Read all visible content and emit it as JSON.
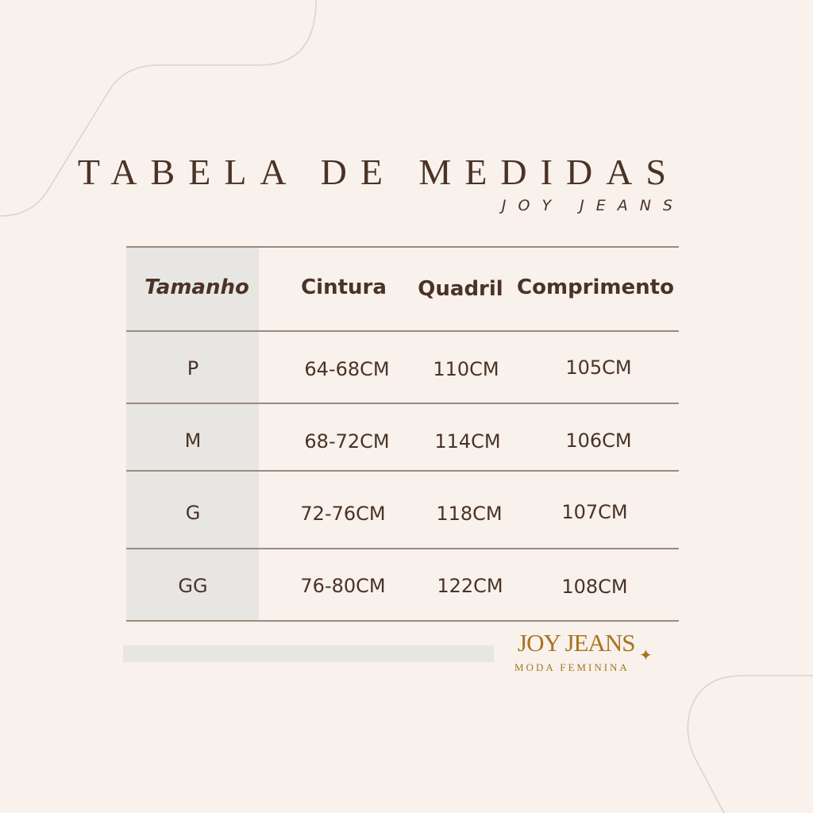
{
  "header": {
    "title": "TABELA DE MEDIDAS",
    "subtitle": "JOY JEANS"
  },
  "table": {
    "columns": [
      "Tamanho",
      "Cintura",
      "Quadril",
      "Comprimento"
    ],
    "rows": [
      [
        "P",
        "64-68CM",
        "110CM",
        "105CM"
      ],
      [
        "M",
        "68-72CM",
        "114CM",
        "106CM"
      ],
      [
        "G",
        "72-76CM",
        "118CM",
        "107CM"
      ],
      [
        "GG",
        "76-80CM",
        "122CM",
        "108CM"
      ]
    ]
  },
  "logo": {
    "name": "JOY JEANS",
    "tagline": "MODA FEMININA",
    "icon": "sparkle-icon",
    "color": "#a8741e"
  },
  "colors": {
    "background": "#f8f1ec",
    "text": "#4a3326",
    "highlight_column": "#e8e6e2"
  }
}
